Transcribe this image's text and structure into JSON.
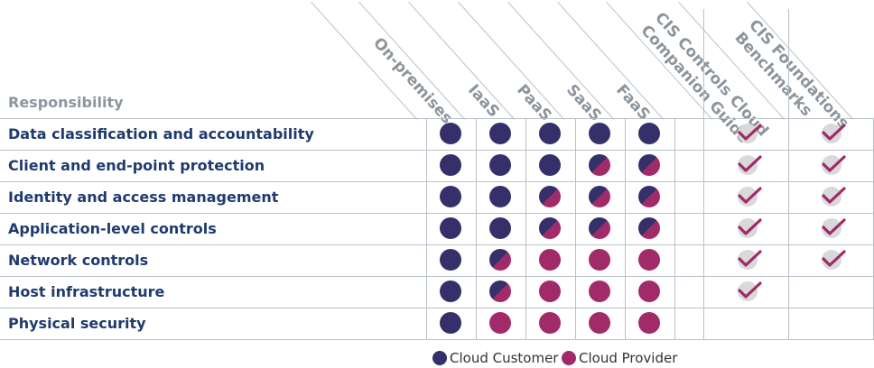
{
  "header": {
    "responsibility": "Responsibility",
    "columns": [
      "On-premises",
      "IaaS",
      "PaaS",
      "SaaS",
      "FaaS"
    ],
    "guide_columns": [
      [
        "CIS Controls Cloud",
        "Companion Guide"
      ],
      [
        "CIS Foundations",
        "Benchmarks"
      ]
    ]
  },
  "rows": [
    {
      "label": "Data classification and accountability",
      "cells": [
        "customer",
        "customer",
        "customer",
        "customer",
        "customer"
      ],
      "companion": true,
      "benchmarks": true
    },
    {
      "label": "Client and end-point protection",
      "cells": [
        "customer",
        "customer",
        "customer",
        "shared",
        "shared"
      ],
      "companion": true,
      "benchmarks": true
    },
    {
      "label": "Identity and access management",
      "cells": [
        "customer",
        "customer",
        "shared",
        "shared",
        "shared"
      ],
      "companion": true,
      "benchmarks": true
    },
    {
      "label": "Application-level controls",
      "cells": [
        "customer",
        "customer",
        "shared",
        "shared",
        "shared"
      ],
      "companion": true,
      "benchmarks": true
    },
    {
      "label": "Network controls",
      "cells": [
        "customer",
        "shared",
        "provider",
        "provider",
        "provider"
      ],
      "companion": true,
      "benchmarks": true
    },
    {
      "label": "Host infrastructure",
      "cells": [
        "customer",
        "shared",
        "provider",
        "provider",
        "provider"
      ],
      "companion": true,
      "benchmarks": false
    },
    {
      "label": "Physical security",
      "cells": [
        "customer",
        "provider",
        "provider",
        "provider",
        "provider"
      ],
      "companion": false,
      "benchmarks": false
    }
  ],
  "legend": {
    "customer": "Cloud Customer",
    "provider": "Cloud Provider"
  },
  "colors": {
    "customer": "#35306a",
    "provider": "#a12a68",
    "check": "#a12a68",
    "check_bg": "#d9d9d9",
    "label": "#1f3b6e",
    "header": "#8c949c",
    "grid": "#b9c0c8"
  }
}
